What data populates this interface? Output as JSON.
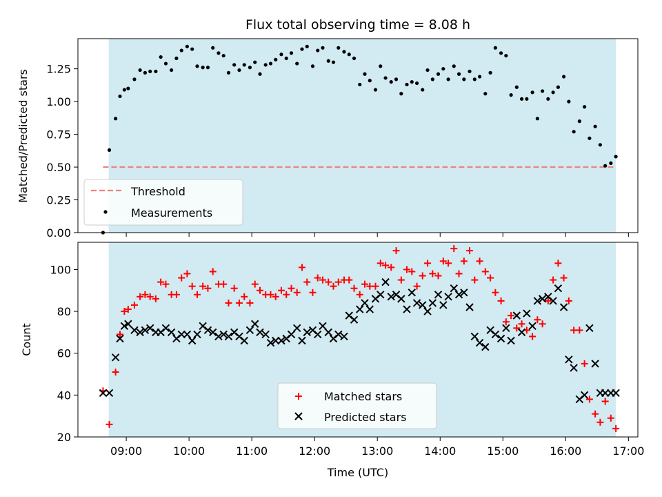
{
  "title": "Flux total observing time = 8.08 h",
  "colors": {
    "band": "#add8e6",
    "threshold": "#f08080",
    "measurements": "#000000",
    "matched": "#ff0000",
    "predicted": "#000000"
  },
  "chart_data": [
    {
      "type": "scatter",
      "panel": "top",
      "ylabel": "Matched/Predicted stars",
      "ylim": [
        0,
        1.48
      ],
      "yticks": [
        "0.00",
        "0.25",
        "0.50",
        "0.75",
        "1.00",
        "1.25"
      ],
      "xlim": [
        8.23,
        17.15
      ],
      "xticks": [
        "09:00",
        "10:00",
        "11:00",
        "12:00",
        "13:00",
        "14:00",
        "15:00",
        "16:00",
        "17:00"
      ],
      "observing_band": [
        8.72,
        16.8
      ],
      "threshold": {
        "name": "Threshold",
        "y": 0.5,
        "x": [
          8.63,
          16.8
        ]
      },
      "legend": {
        "placement": "lower-left",
        "entries": [
          "Threshold",
          "Measurements"
        ]
      },
      "series": [
        {
          "name": "Measurements",
          "x": [
            8.63,
            8.73,
            8.83,
            8.9,
            8.97,
            9.03,
            9.13,
            9.22,
            9.3,
            9.38,
            9.47,
            9.55,
            9.63,
            9.72,
            9.8,
            9.88,
            9.97,
            10.05,
            10.13,
            10.22,
            10.3,
            10.38,
            10.47,
            10.55,
            10.63,
            10.72,
            10.8,
            10.88,
            10.97,
            11.05,
            11.13,
            11.22,
            11.3,
            11.38,
            11.47,
            11.55,
            11.63,
            11.72,
            11.8,
            11.88,
            11.97,
            12.05,
            12.13,
            12.22,
            12.3,
            12.38,
            12.47,
            12.55,
            12.63,
            12.72,
            12.8,
            12.88,
            12.97,
            13.05,
            13.13,
            13.22,
            13.3,
            13.38,
            13.47,
            13.55,
            13.63,
            13.72,
            13.8,
            13.88,
            13.97,
            14.05,
            14.13,
            14.22,
            14.3,
            14.38,
            14.47,
            14.55,
            14.63,
            14.72,
            14.8,
            14.88,
            14.97,
            15.05,
            15.13,
            15.22,
            15.3,
            15.38,
            15.47,
            15.55,
            15.63,
            15.72,
            15.8,
            15.88,
            15.97,
            16.05,
            16.13,
            16.22,
            16.3,
            16.38,
            16.47,
            16.55,
            16.63,
            16.72,
            16.8
          ],
          "y": [
            0.0,
            0.63,
            0.87,
            1.04,
            1.09,
            1.1,
            1.17,
            1.24,
            1.22,
            1.23,
            1.23,
            1.34,
            1.29,
            1.24,
            1.33,
            1.39,
            1.42,
            1.4,
            1.27,
            1.26,
            1.26,
            1.41,
            1.37,
            1.35,
            1.22,
            1.28,
            1.24,
            1.28,
            1.26,
            1.3,
            1.21,
            1.28,
            1.29,
            1.32,
            1.36,
            1.33,
            1.37,
            1.29,
            1.4,
            1.42,
            1.27,
            1.39,
            1.41,
            1.31,
            1.3,
            1.41,
            1.38,
            1.36,
            1.33,
            1.13,
            1.21,
            1.16,
            1.09,
            1.27,
            1.18,
            1.15,
            1.17,
            1.06,
            1.13,
            1.15,
            1.14,
            1.09,
            1.24,
            1.17,
            1.21,
            1.25,
            1.17,
            1.27,
            1.21,
            1.17,
            1.23,
            1.17,
            1.19,
            1.06,
            1.22,
            1.41,
            1.37,
            1.35,
            1.05,
            1.11,
            1.02,
            1.02,
            1.07,
            0.87,
            1.08,
            1.02,
            1.07,
            1.11,
            1.19,
            1.0,
            0.77,
            0.85,
            0.96,
            0.72,
            0.81,
            0.67,
            0.51,
            0.53,
            0.58
          ]
        }
      ]
    },
    {
      "type": "scatter",
      "panel": "bottom",
      "ylabel": "Count",
      "xlabel": "Time (UTC)",
      "ylim": [
        20,
        113
      ],
      "yticks": [
        "20",
        "40",
        "60",
        "80",
        "100"
      ],
      "xlim": [
        8.23,
        17.15
      ],
      "xticks": [
        "09:00",
        "10:00",
        "11:00",
        "12:00",
        "13:00",
        "14:00",
        "15:00",
        "16:00",
        "17:00"
      ],
      "observing_band": [
        8.72,
        16.8
      ],
      "legend": {
        "placement": "lower-center",
        "entries": [
          "Matched stars",
          "Predicted stars"
        ]
      },
      "series": [
        {
          "name": "Matched stars",
          "marker": "plus",
          "x": [
            8.63,
            8.73,
            8.83,
            8.9,
            8.97,
            9.03,
            9.13,
            9.22,
            9.3,
            9.38,
            9.47,
            9.55,
            9.63,
            9.72,
            9.8,
            9.88,
            9.97,
            10.05,
            10.13,
            10.22,
            10.3,
            10.38,
            10.47,
            10.55,
            10.63,
            10.72,
            10.8,
            10.88,
            10.97,
            11.05,
            11.13,
            11.22,
            11.3,
            11.38,
            11.47,
            11.55,
            11.63,
            11.72,
            11.8,
            11.88,
            11.97,
            12.05,
            12.13,
            12.22,
            12.3,
            12.38,
            12.47,
            12.55,
            12.63,
            12.72,
            12.8,
            12.88,
            12.97,
            13.05,
            13.13,
            13.22,
            13.3,
            13.38,
            13.47,
            13.55,
            13.63,
            13.72,
            13.8,
            13.88,
            13.97,
            14.05,
            14.13,
            14.22,
            14.3,
            14.38,
            14.47,
            14.55,
            14.63,
            14.72,
            14.8,
            14.88,
            14.97,
            15.05,
            15.13,
            15.22,
            15.3,
            15.38,
            15.47,
            15.55,
            15.63,
            15.72,
            15.8,
            15.88,
            15.97,
            16.05,
            16.13,
            16.22,
            16.3,
            16.38,
            16.47,
            16.55,
            16.63,
            16.72,
            16.8
          ],
          "y": [
            42,
            26,
            51,
            69,
            80,
            81,
            83,
            87,
            88,
            87,
            86,
            94,
            93,
            88,
            88,
            96,
            98,
            92,
            88,
            92,
            91,
            99,
            93,
            93,
            84,
            91,
            84,
            87,
            84,
            93,
            90,
            88,
            88,
            87,
            90,
            88,
            91,
            89,
            101,
            94,
            89,
            96,
            95,
            94,
            92,
            94,
            95,
            95,
            91,
            88,
            93,
            92,
            92,
            103,
            102,
            101,
            109,
            95,
            100,
            99,
            92,
            97,
            103,
            98,
            97,
            104,
            103,
            110,
            98,
            104,
            109,
            95,
            104,
            99,
            96,
            89,
            85,
            75,
            78,
            72,
            74,
            71,
            68,
            76,
            74,
            85,
            95,
            103,
            96,
            85,
            71,
            71,
            55,
            38,
            31,
            27,
            37,
            29,
            24
          ]
        },
        {
          "name": "Predicted stars",
          "marker": "x",
          "x": [
            8.63,
            8.73,
            8.83,
            8.9,
            8.97,
            9.03,
            9.13,
            9.22,
            9.3,
            9.38,
            9.47,
            9.55,
            9.63,
            9.72,
            9.8,
            9.88,
            9.97,
            10.05,
            10.13,
            10.22,
            10.3,
            10.38,
            10.47,
            10.55,
            10.63,
            10.72,
            10.8,
            10.88,
            10.97,
            11.05,
            11.13,
            11.22,
            11.3,
            11.38,
            11.47,
            11.55,
            11.63,
            11.72,
            11.8,
            11.88,
            11.97,
            12.05,
            12.13,
            12.22,
            12.3,
            12.38,
            12.47,
            12.55,
            12.63,
            12.72,
            12.8,
            12.88,
            12.97,
            13.05,
            13.13,
            13.22,
            13.3,
            13.38,
            13.47,
            13.55,
            13.63,
            13.72,
            13.8,
            13.88,
            13.97,
            14.05,
            14.13,
            14.22,
            14.3,
            14.38,
            14.47,
            14.55,
            14.63,
            14.72,
            14.8,
            14.88,
            14.97,
            15.05,
            15.13,
            15.22,
            15.3,
            15.38,
            15.47,
            15.55,
            15.63,
            15.72,
            15.8,
            15.88,
            15.97,
            16.05,
            16.13,
            16.22,
            16.3,
            16.38,
            16.47,
            16.55,
            16.63,
            16.72,
            16.8
          ],
          "y": [
            41,
            41,
            58,
            67,
            73,
            74,
            71,
            70,
            71,
            72,
            70,
            70,
            72,
            70,
            67,
            69,
            69,
            66,
            69,
            73,
            71,
            70,
            68,
            69,
            68,
            70,
            68,
            66,
            71,
            74,
            70,
            69,
            65,
            66,
            66,
            67,
            69,
            72,
            66,
            70,
            71,
            69,
            73,
            70,
            67,
            69,
            68,
            78,
            76,
            81,
            84,
            81,
            86,
            88,
            94,
            87,
            88,
            86,
            81,
            89,
            84,
            83,
            80,
            84,
            88,
            83,
            87,
            91,
            88,
            89,
            82,
            68,
            65,
            63,
            71,
            69,
            67,
            72,
            66,
            78,
            70,
            79,
            73,
            85,
            86,
            87,
            85,
            91,
            82,
            57,
            53,
            38,
            40,
            72,
            55,
            41,
            41,
            41,
            41
          ]
        }
      ]
    }
  ]
}
